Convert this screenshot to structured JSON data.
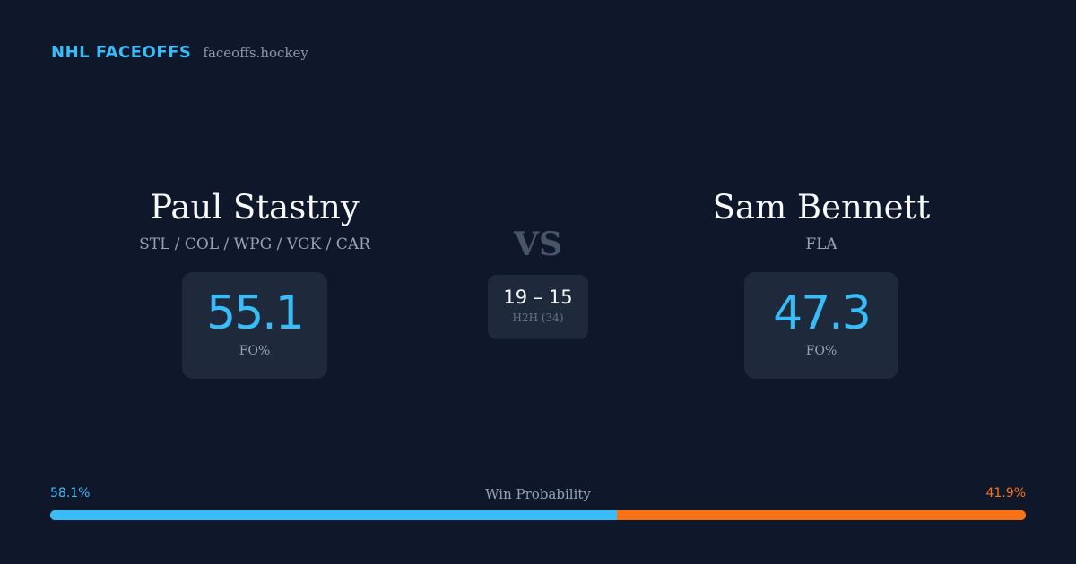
{
  "brand": {
    "title": "NHL FACEOFFS",
    "site": "faceoffs.hockey"
  },
  "player_left": {
    "name": "Paul Stastny",
    "teams": "STL / COL / WPG / VGK / CAR",
    "stat_value": "55.1",
    "stat_label": "FO%"
  },
  "player_right": {
    "name": "Sam Bennett",
    "teams": "FLA",
    "stat_value": "47.3",
    "stat_label": "FO%"
  },
  "versus": {
    "label": "VS",
    "h2h_score": "19 – 15",
    "h2h_label": "H2H (34)"
  },
  "win_probability": {
    "title": "Win Probability",
    "left_label": "58.1%",
    "right_label": "41.9%",
    "left_fraction": 0.581,
    "left_color": "#38bdf8",
    "right_color": "#f97316"
  }
}
